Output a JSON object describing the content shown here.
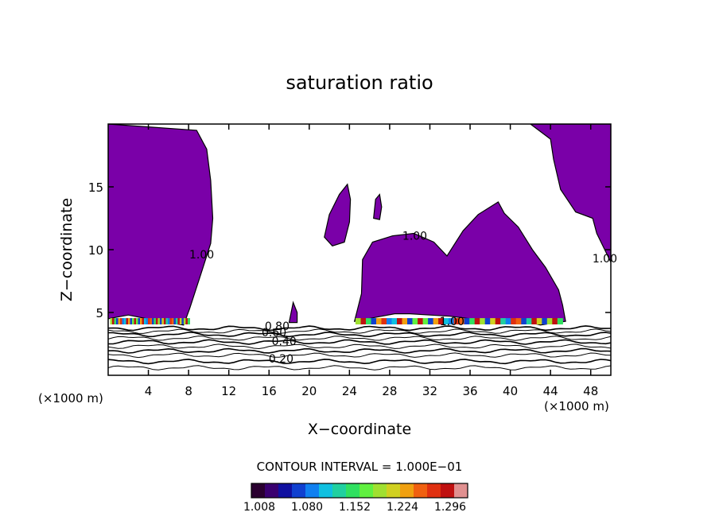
{
  "chart_data": {
    "type": "heatmap",
    "title": "saturation ratio",
    "xlabel": "X−coordinate",
    "ylabel": "Z−coordinate",
    "x_unit_left": "(×1000 m)",
    "x_unit_right": "(×1000 m)",
    "xlim": [
      0,
      50
    ],
    "ylim": [
      0,
      20
    ],
    "x_ticks": [
      4,
      8,
      12,
      16,
      20,
      24,
      28,
      32,
      36,
      40,
      44,
      48
    ],
    "y_ticks": [
      5,
      10,
      15
    ],
    "contour_interval_text": "CONTOUR INTERVAL = 1.000E−01",
    "contour_labels": [
      {
        "text": "0.20",
        "x": 17.2,
        "y": 1.0
      },
      {
        "text": "0.40",
        "x": 17.5,
        "y": 2.4
      },
      {
        "text": "0.60",
        "x": 16.5,
        "y": 3.1
      },
      {
        "text": "0.80",
        "x": 16.8,
        "y": 3.6
      },
      {
        "text": "1.00",
        "x": 34.2,
        "y": 4.0
      },
      {
        "text": "1.00",
        "x": 30.5,
        "y": 10.8
      },
      {
        "text": "1.00",
        "x": 9.3,
        "y": 9.3
      },
      {
        "text": "1.00",
        "x": 49.4,
        "y": 9.0
      }
    ],
    "colorbar": {
      "ticks": [
        "1.008",
        "1.080",
        "1.152",
        "1.224",
        "1.296"
      ],
      "colors": [
        "#2a0030",
        "#3a0070",
        "#1010a0",
        "#1040d0",
        "#1080f0",
        "#10c0e0",
        "#20d0a0",
        "#30e060",
        "#60f040",
        "#a0e030",
        "#d0d020",
        "#f0a010",
        "#f06010",
        "#e03010",
        "#c01010",
        "#e09090"
      ]
    },
    "fill_color_supersaturated": "#7a00a8",
    "supersaturated_regions": [
      {
        "name": "left-region",
        "outline": [
          [
            0,
            4.5
          ],
          [
            2,
            4.8
          ],
          [
            4.5,
            4.4
          ],
          [
            7.5,
            4.0
          ],
          [
            8.1,
            5.3
          ],
          [
            9.2,
            8.0
          ],
          [
            10.2,
            10.5
          ],
          [
            10.4,
            12.5
          ],
          [
            10.2,
            15.5
          ],
          [
            9.8,
            18.0
          ],
          [
            8.8,
            19.5
          ],
          [
            0,
            20
          ]
        ]
      },
      {
        "name": "right-region-top",
        "outline": [
          [
            42,
            20
          ],
          [
            50,
            20
          ],
          [
            50,
            9.0
          ],
          [
            48.6,
            11.3
          ],
          [
            48.2,
            12.5
          ],
          [
            46.5,
            13.0
          ],
          [
            45.0,
            14.8
          ],
          [
            44.3,
            17.2
          ],
          [
            44.0,
            18.8
          ]
        ]
      },
      {
        "name": "central-anvil",
        "outline": [
          [
            24.5,
            4.3
          ],
          [
            26.5,
            4.6
          ],
          [
            28.5,
            4.9
          ],
          [
            30,
            4.9
          ],
          [
            32,
            4.8
          ],
          [
            34,
            4.7
          ],
          [
            36,
            4.5
          ],
          [
            40,
            4.3
          ],
          [
            42,
            4.2
          ],
          [
            43,
            4.0
          ],
          [
            45.5,
            4.3
          ],
          [
            45.2,
            5.6
          ],
          [
            44.8,
            6.8
          ],
          [
            43.5,
            8.6
          ],
          [
            42.2,
            10.0
          ],
          [
            40.8,
            11.8
          ],
          [
            39.4,
            12.9
          ],
          [
            38.8,
            13.8
          ],
          [
            36.8,
            12.8
          ],
          [
            35.3,
            11.5
          ],
          [
            33.7,
            9.5
          ],
          [
            32.4,
            10.6
          ],
          [
            30.4,
            11.3
          ],
          [
            28.3,
            11.1
          ],
          [
            26.3,
            10.6
          ],
          [
            25.3,
            9.2
          ],
          [
            25.2,
            6.5
          ]
        ]
      },
      {
        "name": "cell-a",
        "outline": [
          [
            21.5,
            11.0
          ],
          [
            22.0,
            12.8
          ],
          [
            23.0,
            14.4
          ],
          [
            23.8,
            15.2
          ],
          [
            24.1,
            14.0
          ],
          [
            24.0,
            12.2
          ],
          [
            23.5,
            10.6
          ],
          [
            22.3,
            10.3
          ]
        ]
      },
      {
        "name": "cell-b",
        "outline": [
          [
            26.4,
            12.5
          ],
          [
            26.6,
            14.0
          ],
          [
            27.0,
            14.4
          ],
          [
            27.2,
            13.4
          ],
          [
            27.0,
            12.4
          ]
        ]
      },
      {
        "name": "cell-c",
        "outline": [
          [
            18.0,
            4.2
          ],
          [
            18.4,
            5.8
          ],
          [
            18.8,
            5.0
          ],
          [
            18.8,
            4.2
          ]
        ]
      }
    ]
  }
}
